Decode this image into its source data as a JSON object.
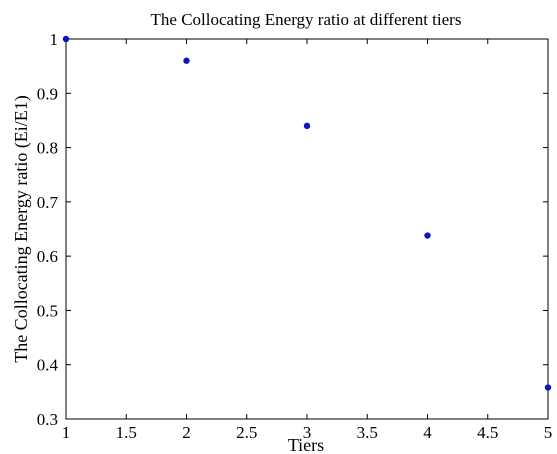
{
  "chart_data": {
    "type": "scatter",
    "title": "The Collocating Energy ratio at different tiers",
    "xlabel": "Tiers",
    "ylabel": "The Collocating Energy ratio (Ei/E1)",
    "xlim": [
      1,
      5
    ],
    "ylim": [
      0.3,
      1
    ],
    "xticks": [
      1,
      1.5,
      2,
      2.5,
      3,
      3.5,
      4,
      4.5,
      5
    ],
    "xtick_labels": [
      "1",
      "1.5",
      "2",
      "2.5",
      "3",
      "3.5",
      "4",
      "4.5",
      "5"
    ],
    "yticks": [
      0.3,
      0.4,
      0.5,
      0.6,
      0.7,
      0.8,
      0.9,
      1
    ],
    "ytick_labels": [
      "0.3",
      "0.4",
      "0.5",
      "0.6",
      "0.7",
      "0.8",
      "0.9",
      "1"
    ],
    "grid": false,
    "legend": "none",
    "series": [
      {
        "x": [
          1,
          2,
          3,
          4,
          5
        ],
        "y": [
          1.0,
          0.96,
          0.84,
          0.638,
          0.358
        ],
        "color": "#1010c8"
      }
    ]
  }
}
